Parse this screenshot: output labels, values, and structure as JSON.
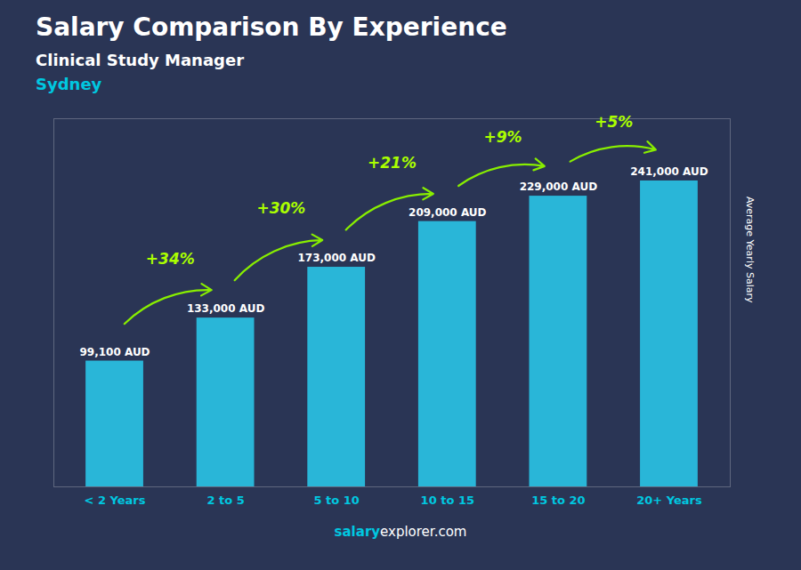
{
  "chart_data": {
    "type": "bar",
    "title": "Salary Comparison By Experience",
    "subtitle": [
      "Clinical Study Manager",
      "Sydney"
    ],
    "categories": [
      "< 2 Years",
      "2 to 5",
      "5 to 10",
      "10 to 15",
      "15 to 20",
      "20+ Years"
    ],
    "values": [
      99100,
      133000,
      173000,
      209000,
      229000,
      241000
    ],
    "value_labels": [
      "99,100 AUD",
      "133,000 AUD",
      "173,000 AUD",
      "209,000 AUD",
      "229,000 AUD",
      "241,000 AUD"
    ],
    "data_labels": true,
    "annotations": [
      "+34%",
      "+30%",
      "+21%",
      "+9%",
      "+5%"
    ],
    "ylabel": "Average Yearly Salary",
    "caption": [
      "salary",
      "explorer.com"
    ],
    "color": "#29b6d8",
    "ylim": [
      0,
      290000
    ],
    "tick_labels": "x",
    "grid": false
  }
}
